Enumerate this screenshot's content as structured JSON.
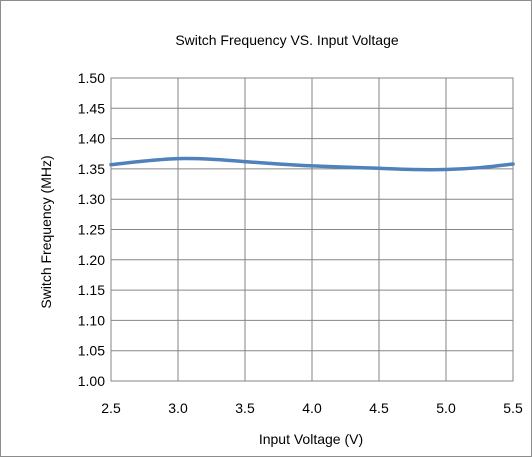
{
  "chart_data": {
    "type": "line",
    "title": "Switch Frequency VS. Input Voltage",
    "xlabel": "Input Voltage (V)",
    "ylabel": "Switch Frequency  (MHz)",
    "xlim": [
      2.5,
      5.5
    ],
    "ylim": [
      1.0,
      1.5
    ],
    "x_ticks": [
      "2.5",
      "3.0",
      "3.5",
      "4.0",
      "4.5",
      "5.0",
      "5.5"
    ],
    "y_ticks": [
      "1.00",
      "1.05",
      "1.10",
      "1.15",
      "1.20",
      "1.25",
      "1.30",
      "1.35",
      "1.40",
      "1.45",
      "1.50"
    ],
    "grid": true,
    "legend": "none",
    "series": [
      {
        "color": "#4f81bd",
        "x": [
          2.5,
          2.75,
          3.0,
          3.25,
          3.5,
          3.75,
          4.0,
          4.25,
          4.5,
          4.75,
          5.0,
          5.25,
          5.5
        ],
        "y": [
          1.357,
          1.363,
          1.367,
          1.366,
          1.362,
          1.358,
          1.355,
          1.353,
          1.351,
          1.349,
          1.349,
          1.352,
          1.358
        ]
      }
    ]
  }
}
